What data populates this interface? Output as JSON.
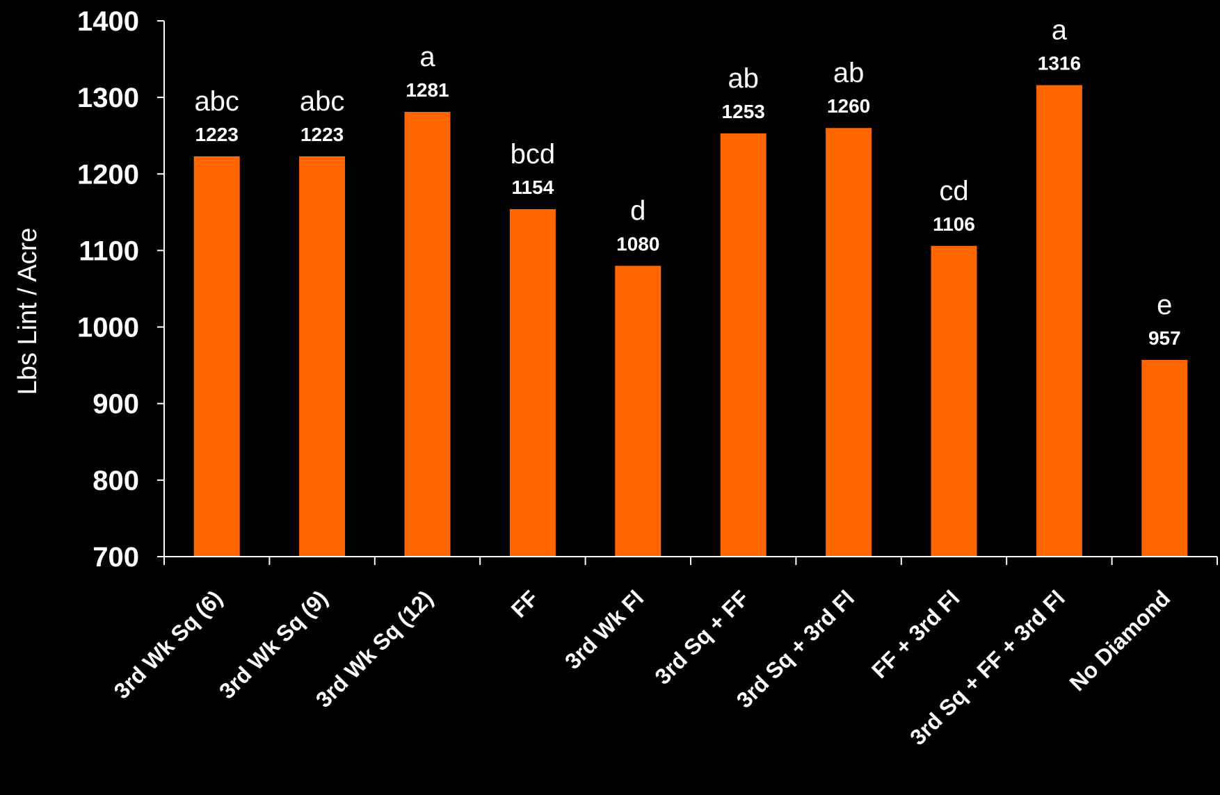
{
  "colors": {
    "background": "#000000",
    "bar": "#ff6600",
    "axis": "#ffffff",
    "text": "#ffffff"
  },
  "chart_data": {
    "type": "bar",
    "title": "",
    "xlabel": "",
    "ylabel": "Lbs Lint / Acre",
    "ylim": [
      700,
      1400
    ],
    "yticks": [
      700,
      800,
      900,
      1000,
      1100,
      1200,
      1300,
      1400
    ],
    "grid": false,
    "legend": "none",
    "categories": [
      "3rd Wk Sq (6)",
      "3rd Wk Sq (9)",
      "3rd Wk Sq (12)",
      "FF",
      "3rd Wk Fl",
      "3rd Sq + FF",
      "3rd Sq + 3rd Fl",
      "FF + 3rd Fl",
      "3rd Sq + FF + 3rd Fl",
      "No Diamond"
    ],
    "values": [
      1223,
      1223,
      1281,
      1154,
      1080,
      1253,
      1260,
      1106,
      1316,
      957
    ],
    "value_labels": [
      "1223",
      "1223",
      "1281",
      "1154",
      "1080",
      "1253",
      "1260",
      "1106",
      "1316",
      "957"
    ],
    "group_letters": [
      "abc",
      "abc",
      "a",
      "bcd",
      "d",
      "ab",
      "ab",
      "cd",
      "a",
      "e"
    ]
  }
}
